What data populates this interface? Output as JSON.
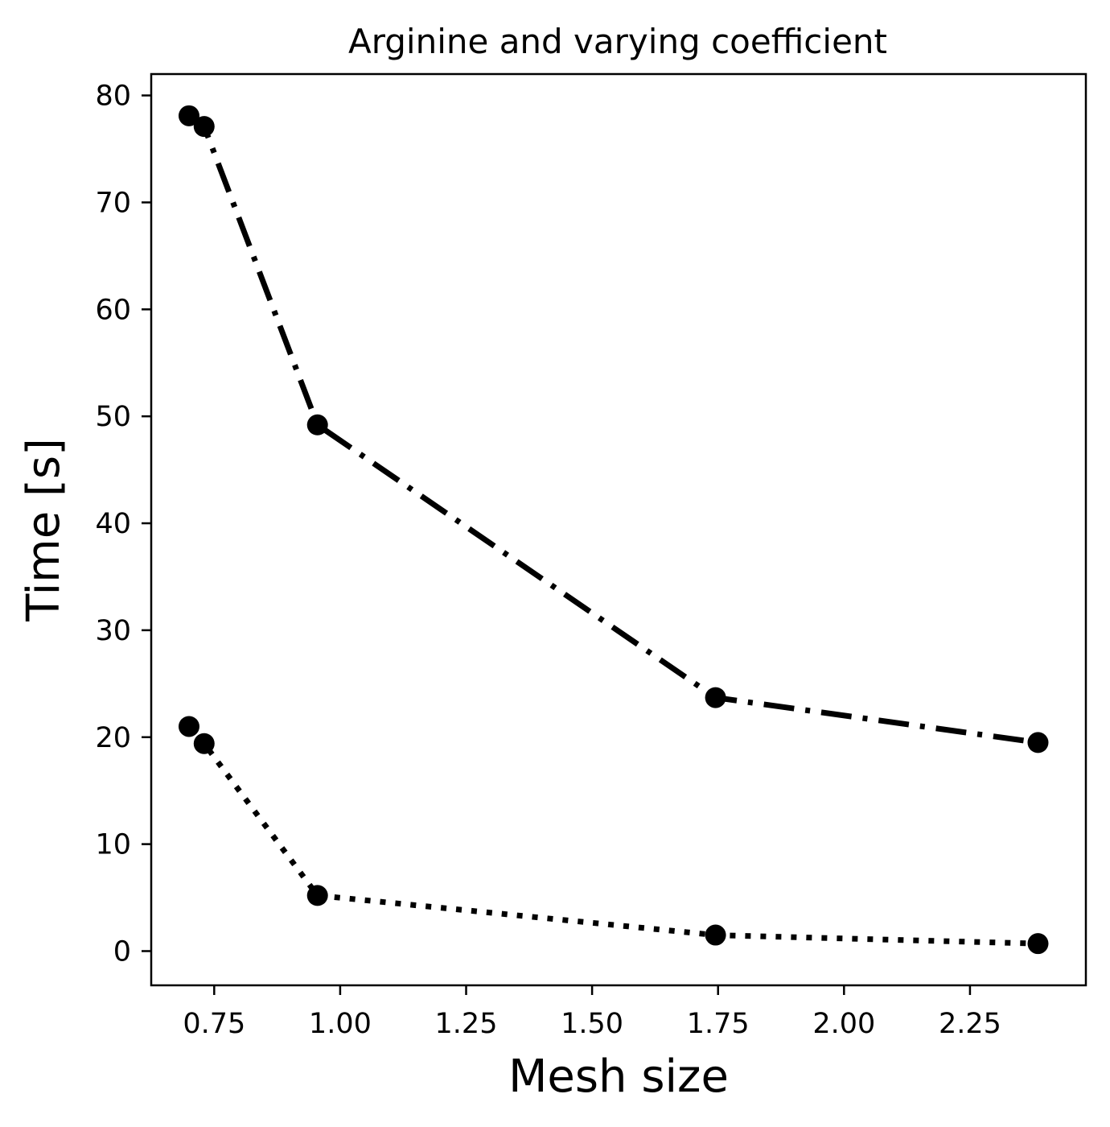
{
  "chart_data": {
    "type": "line",
    "title": "Arginine and varying coefficient",
    "xlabel": "Mesh size",
    "ylabel": "Time [s]",
    "xlim": [
      0.625,
      2.48
    ],
    "ylim": [
      -3.2,
      82.0
    ],
    "xticks": [
      0.75,
      1.0,
      1.25,
      1.5,
      1.75,
      2.0,
      2.25
    ],
    "xtick_labels": [
      "0.75",
      "1.00",
      "1.25",
      "1.50",
      "1.75",
      "2.00",
      "2.25"
    ],
    "yticks": [
      0,
      10,
      20,
      30,
      40,
      50,
      60,
      70,
      80
    ],
    "ytick_labels": [
      "0",
      "10",
      "20",
      "30",
      "40",
      "50",
      "60",
      "70",
      "80"
    ],
    "grid": false,
    "legend": "none",
    "series": [
      {
        "line_style": "dashdot",
        "color": "#000000",
        "marker": "circle",
        "x": [
          0.7,
          0.73,
          0.955,
          1.745,
          2.385
        ],
        "y": [
          78.1,
          77.1,
          49.2,
          23.7,
          19.5
        ]
      },
      {
        "line_style": "dotted",
        "color": "#000000",
        "marker": "circle",
        "x": [
          0.7,
          0.73,
          0.955,
          1.745,
          2.385
        ],
        "y": [
          21.0,
          19.4,
          5.2,
          1.5,
          0.7
        ]
      }
    ]
  }
}
